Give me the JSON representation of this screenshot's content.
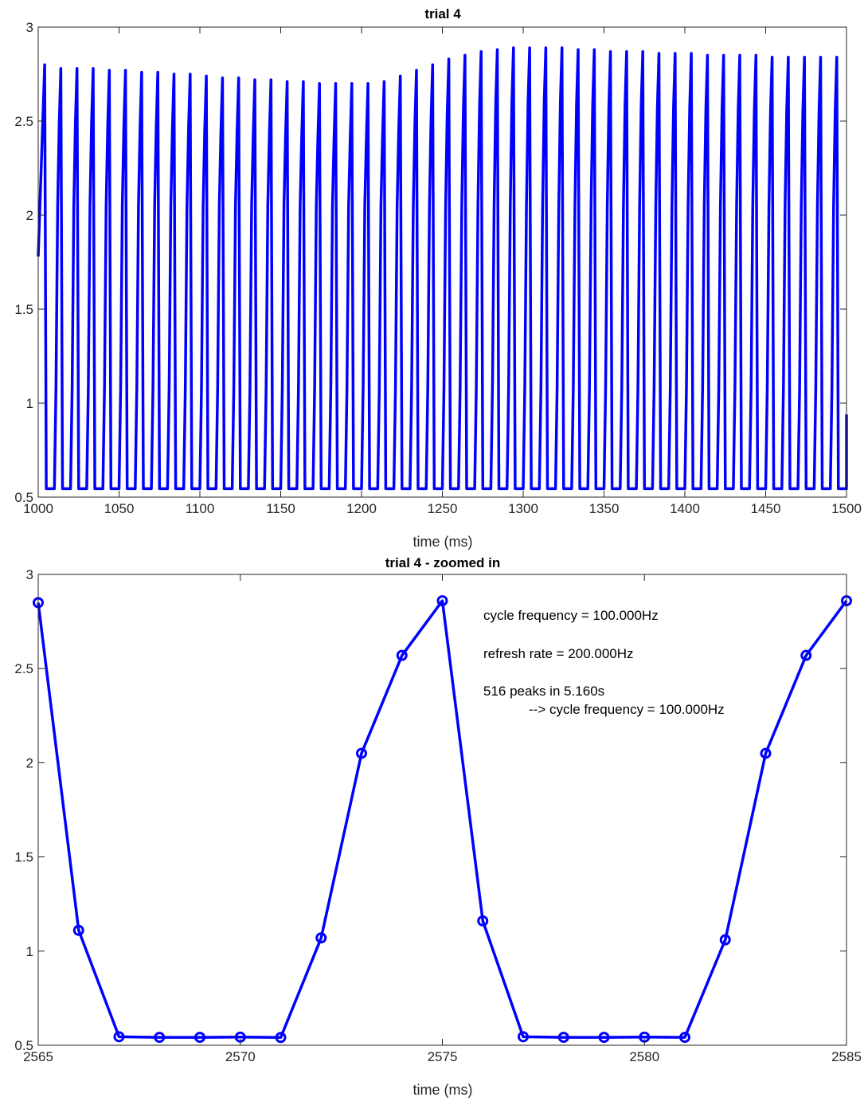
{
  "chart_data": [
    {
      "type": "line",
      "title": "trial 4",
      "xlabel": "time (ms)",
      "ylabel": "",
      "xlim": [
        1000,
        1500
      ],
      "ylim": [
        0.5,
        3
      ],
      "xticks": [
        1000,
        1050,
        1100,
        1150,
        1200,
        1250,
        1300,
        1350,
        1400,
        1450,
        1500
      ],
      "yticks": [
        0.5,
        1,
        1.5,
        2,
        2.5,
        3
      ],
      "xtick_labels": [
        "1000",
        "1050",
        "1100",
        "1150",
        "1200",
        "1250",
        "1300",
        "1350",
        "1400",
        "1450",
        "1500"
      ],
      "ytick_labels": [
        "0.5",
        "1",
        "1.5",
        "2",
        "2.5",
        "3"
      ],
      "color": "#0000ff",
      "grid": false,
      "series": [
        {
          "cycle_period_ms": 10,
          "first_peak_ms": 1004,
          "last_sample": {
            "x": 1500,
            "y": 0.94
          },
          "first_sample": {
            "x": 1000,
            "y": 1.78
          },
          "trough_value": 0.545,
          "peak_values": [
            2.8,
            2.78,
            2.78,
            2.78,
            2.77,
            2.77,
            2.76,
            2.76,
            2.75,
            2.75,
            2.74,
            2.73,
            2.73,
            2.72,
            2.72,
            2.71,
            2.71,
            2.7,
            2.7,
            2.7,
            2.7,
            2.71,
            2.74,
            2.77,
            2.8,
            2.83,
            2.85,
            2.87,
            2.88,
            2.89,
            2.89,
            2.89,
            2.89,
            2.88,
            2.88,
            2.87,
            2.87,
            2.87,
            2.86,
            2.86,
            2.86,
            2.85,
            2.85,
            2.85,
            2.85,
            2.84,
            2.84,
            2.84,
            2.84,
            2.84
          ]
        }
      ]
    },
    {
      "type": "line",
      "title": "trial 4 - zoomed in",
      "xlabel": "time (ms)",
      "ylabel": "",
      "xlim": [
        2565,
        2585
      ],
      "ylim": [
        0.5,
        3
      ],
      "xticks": [
        2565,
        2570,
        2575,
        2580,
        2585
      ],
      "yticks": [
        0.5,
        1,
        1.5,
        2,
        2.5,
        3
      ],
      "xtick_labels": [
        "2565",
        "2570",
        "2575",
        "2580",
        "2585"
      ],
      "ytick_labels": [
        "0.5",
        "1",
        "1.5",
        "2",
        "2.5",
        "3"
      ],
      "color": "#0000ff",
      "marker": "circle",
      "grid": false,
      "series": [
        {
          "x": [
            2565,
            2566,
            2567,
            2568,
            2569,
            2570,
            2571,
            2572,
            2573,
            2574,
            2575,
            2576,
            2577,
            2578,
            2579,
            2580,
            2581,
            2582,
            2583,
            2584,
            2585
          ],
          "y": [
            2.85,
            1.11,
            0.545,
            0.542,
            0.542,
            0.543,
            0.541,
            1.07,
            2.05,
            2.57,
            2.86,
            1.16,
            0.545,
            0.542,
            0.542,
            0.543,
            0.542,
            1.06,
            2.05,
            2.57,
            2.86
          ]
        }
      ],
      "annotations": [
        "cycle frequency = 100.000Hz",
        "refresh rate = 200.000Hz",
        "516 peaks in 5.160s",
        "--> cycle frequency = 100.000Hz"
      ]
    }
  ]
}
